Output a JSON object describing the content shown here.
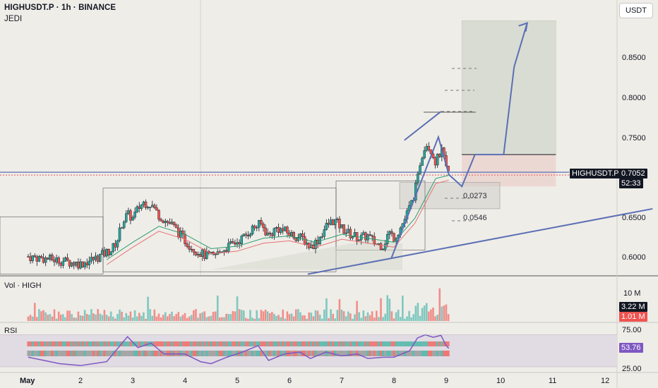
{
  "header": {
    "symbol_line": "HIGHUSDT.P · 1h · BINANCE",
    "indicator": "JEDI"
  },
  "currency_button": "USDT",
  "panes": {
    "volume_title": "Vol · HIGH",
    "rsi_title": "RSI"
  },
  "price_axis": {
    "labels": [
      "0.8500",
      "0.8000",
      "0.7500",
      "0.7000",
      "0.6500",
      "0.6000"
    ],
    "symbol_tag": "HIGHUSDT.P",
    "last_price": "0.7052",
    "countdown": "52:33"
  },
  "volume_axis": {
    "label_top": "10 M",
    "tag_a": "3.22 M",
    "tag_b": "1.01 M"
  },
  "rsi_axis": {
    "label_top": "75.00",
    "value": "53.76",
    "label_bottom": "25.00"
  },
  "time_axis": [
    "May",
    "2",
    "3",
    "4",
    "5",
    "6",
    "7",
    "8",
    "9",
    "10",
    "11",
    "12"
  ],
  "measures": {
    "m1": "0.0273",
    "m2": "0.0546"
  },
  "colors": {
    "up": "#26a69a",
    "down": "#ef5350",
    "tool": "#5b6fb5",
    "rsi": "#7e57c2",
    "bg": "#efede8"
  },
  "chart_data": {
    "type": "candlestick",
    "symbol": "HIGHUSDT.P",
    "timeframe": "1h",
    "exchange": "BINANCE",
    "last_price": 0.7052,
    "price_range": [
      0.578,
      0.895
    ],
    "x_ticks": [
      "May",
      "2",
      "3",
      "4",
      "5",
      "6",
      "7",
      "8",
      "9",
      "10",
      "11",
      "12"
    ],
    "close_path": [
      [
        0,
        0.602
      ],
      [
        0.5,
        0.598
      ],
      [
        1.0,
        0.593
      ],
      [
        1.3,
        0.6
      ],
      [
        1.6,
        0.611
      ],
      [
        1.7,
        0.622
      ],
      [
        1.8,
        0.645
      ],
      [
        1.9,
        0.655
      ],
      [
        2.0,
        0.65
      ],
      [
        2.1,
        0.662
      ],
      [
        2.2,
        0.67
      ],
      [
        2.35,
        0.668
      ],
      [
        2.5,
        0.654
      ],
      [
        2.6,
        0.648
      ],
      [
        2.75,
        0.642
      ],
      [
        2.9,
        0.63
      ],
      [
        3.0,
        0.622
      ],
      [
        3.2,
        0.61
      ],
      [
        3.4,
        0.603
      ],
      [
        3.55,
        0.602
      ],
      [
        3.7,
        0.61
      ],
      [
        3.9,
        0.617
      ],
      [
        4.1,
        0.625
      ],
      [
        4.3,
        0.638
      ],
      [
        4.45,
        0.643
      ],
      [
        4.6,
        0.628
      ],
      [
        4.75,
        0.638
      ],
      [
        4.9,
        0.634
      ],
      [
        5.05,
        0.629
      ],
      [
        5.25,
        0.625
      ],
      [
        5.4,
        0.614
      ],
      [
        5.55,
        0.623
      ],
      [
        5.7,
        0.64
      ],
      [
        5.85,
        0.648
      ],
      [
        6.0,
        0.638
      ],
      [
        6.15,
        0.63
      ],
      [
        6.35,
        0.625
      ],
      [
        6.5,
        0.628
      ],
      [
        6.65,
        0.618
      ],
      [
        6.8,
        0.616
      ],
      [
        6.9,
        0.633
      ],
      [
        7.0,
        0.626
      ],
      [
        7.1,
        0.635
      ],
      [
        7.2,
        0.648
      ],
      [
        7.35,
        0.672
      ],
      [
        7.45,
        0.697
      ],
      [
        7.5,
        0.72
      ],
      [
        7.6,
        0.745
      ],
      [
        7.7,
        0.738
      ],
      [
        7.8,
        0.72
      ],
      [
        7.9,
        0.735
      ],
      [
        7.95,
        0.728
      ],
      [
        8.0,
        0.71
      ],
      [
        8.05,
        0.7052
      ]
    ],
    "moving_average_1": [
      [
        1.5,
        0.598
      ],
      [
        2.0,
        0.62
      ],
      [
        2.5,
        0.64
      ],
      [
        3.0,
        0.63
      ],
      [
        3.5,
        0.612
      ],
      [
        4.0,
        0.615
      ],
      [
        4.5,
        0.625
      ],
      [
        5.0,
        0.628
      ],
      [
        5.5,
        0.62
      ],
      [
        6.0,
        0.63
      ],
      [
        6.5,
        0.625
      ],
      [
        7.0,
        0.62
      ],
      [
        7.4,
        0.65
      ],
      [
        7.8,
        0.7
      ],
      [
        8.05,
        0.704
      ]
    ],
    "resistance_trendline": [
      [
        5.35,
        0.58
      ],
      [
        11.95,
        0.662
      ]
    ],
    "projection_path": [
      [
        6.95,
        0.6
      ],
      [
        7.85,
        0.752
      ],
      [
        8.05,
        0.705
      ],
      [
        8.3,
        0.69
      ],
      [
        8.55,
        0.73
      ],
      [
        9.1,
        0.73
      ],
      [
        9.3,
        0.84
      ],
      [
        9.55,
        0.895
      ]
    ],
    "long_position": {
      "entry": 0.73,
      "target": 0.898,
      "stop": 0.69,
      "x_range": [
        8.3,
        10.1
      ]
    },
    "volume": {
      "max_label": "10 M",
      "last_values": [
        "3.22 M",
        "1.01 M"
      ]
    },
    "rsi": {
      "upper_band": 75,
      "lower_band": 25,
      "last": 53.76,
      "path": [
        [
          0,
          40
        ],
        [
          0.3,
          35
        ],
        [
          0.6,
          30
        ],
        [
          1.0,
          27
        ],
        [
          1.5,
          33
        ],
        [
          1.9,
          72
        ],
        [
          2.1,
          55
        ],
        [
          2.35,
          62
        ],
        [
          2.6,
          45
        ],
        [
          3.0,
          45
        ],
        [
          3.3,
          33
        ],
        [
          3.5,
          30
        ],
        [
          3.8,
          40
        ],
        [
          4.1,
          48
        ],
        [
          4.4,
          58
        ],
        [
          4.6,
          35
        ],
        [
          4.9,
          45
        ],
        [
          5.2,
          48
        ],
        [
          5.4,
          38
        ],
        [
          5.7,
          48
        ],
        [
          6.0,
          42
        ],
        [
          6.3,
          45
        ],
        [
          6.5,
          38
        ],
        [
          6.8,
          40
        ],
        [
          7.0,
          40
        ],
        [
          7.3,
          50
        ],
        [
          7.45,
          70
        ],
        [
          7.6,
          75
        ],
        [
          7.75,
          71
        ],
        [
          7.9,
          74
        ],
        [
          8.0,
          58
        ],
        [
          8.05,
          53.76
        ]
      ]
    }
  }
}
